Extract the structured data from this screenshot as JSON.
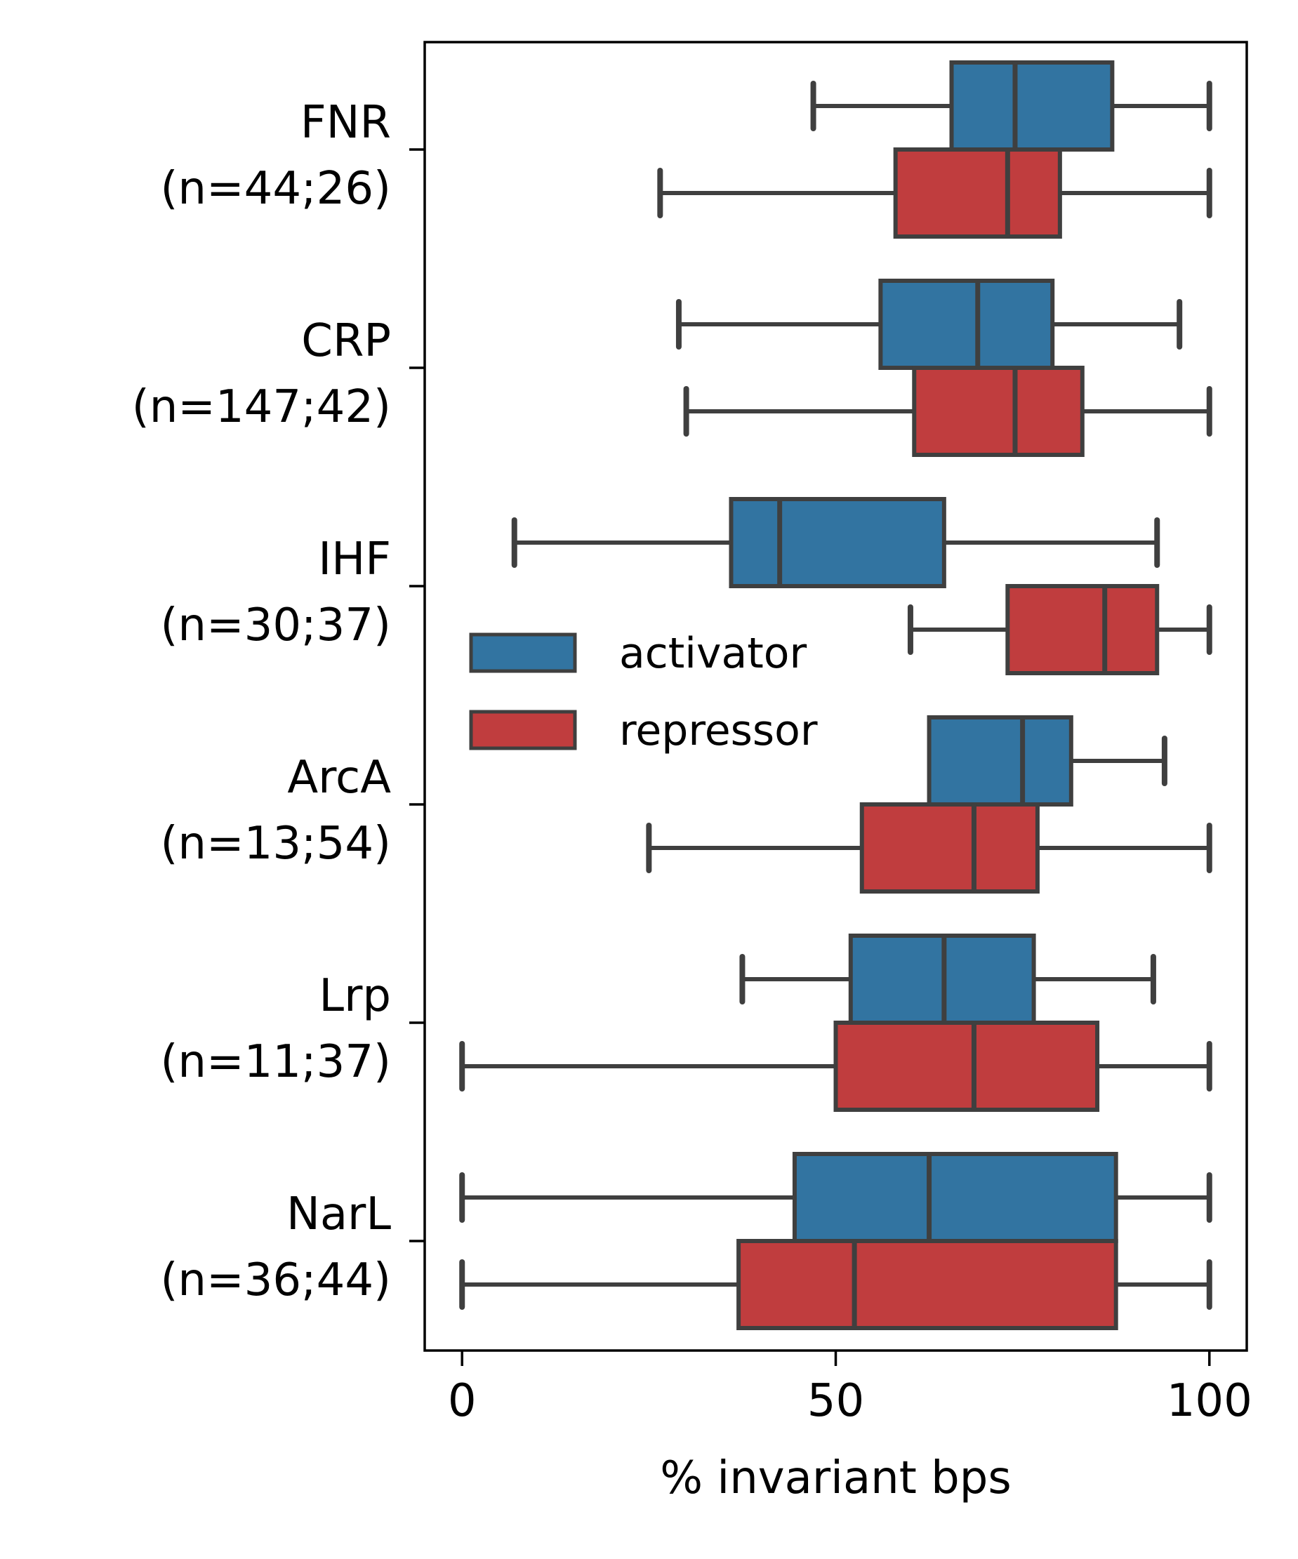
{
  "chart_data": {
    "type": "boxplot",
    "orientation": "horizontal",
    "xlabel": "% invariant bps",
    "xlim": [
      -5,
      105
    ],
    "xticks": [
      0,
      50,
      100
    ],
    "xtick_labels": [
      "0",
      "50",
      "100"
    ],
    "grid": false,
    "legend_position": "center-left",
    "categories": [
      {
        "name": "FNR",
        "count": "(n=44;26)"
      },
      {
        "name": "CRP",
        "count": "(n=147;42)"
      },
      {
        "name": "IHF",
        "count": "(n=30;37)"
      },
      {
        "name": "ArcA",
        "count": "(n=13;54)"
      },
      {
        "name": "Lrp",
        "count": "(n=11;37)"
      },
      {
        "name": "NarL",
        "count": "(n=36;44)"
      }
    ],
    "series": [
      {
        "name": "activator",
        "color": "#3274a1",
        "boxes": [
          {
            "min": 47,
            "q1": 65.5,
            "median": 74,
            "q3": 87,
            "max": 100
          },
          {
            "min": 29,
            "q1": 56,
            "median": 69,
            "q3": 79,
            "max": 96
          },
          {
            "min": 7,
            "q1": 36,
            "median": 42.5,
            "q3": 64.5,
            "max": 93
          },
          {
            "min": null,
            "q1": 62.5,
            "median": 75,
            "q3": 81.5,
            "max": 94
          },
          {
            "min": 37.5,
            "q1": 52,
            "median": 64.5,
            "q3": 76.5,
            "max": 92.5
          },
          {
            "min": 0,
            "q1": 44.5,
            "median": 62.5,
            "q3": 87.5,
            "max": 100
          }
        ]
      },
      {
        "name": "repressor",
        "color": "#c03d3e",
        "boxes": [
          {
            "min": 26.5,
            "q1": 58,
            "median": 73,
            "q3": 80,
            "max": 100
          },
          {
            "min": 30,
            "q1": 60.5,
            "median": 74,
            "q3": 83,
            "max": 100
          },
          {
            "min": 60,
            "q1": 73,
            "median": 86,
            "q3": 93,
            "max": 100
          },
          {
            "min": 25,
            "q1": 53.5,
            "median": 68.5,
            "q3": 77,
            "max": 100
          },
          {
            "min": 0,
            "q1": 50,
            "median": 68.5,
            "q3": 85,
            "max": 100
          },
          {
            "min": 0,
            "q1": 37,
            "median": 52.5,
            "q3": 87.5,
            "max": 100
          }
        ]
      }
    ]
  }
}
